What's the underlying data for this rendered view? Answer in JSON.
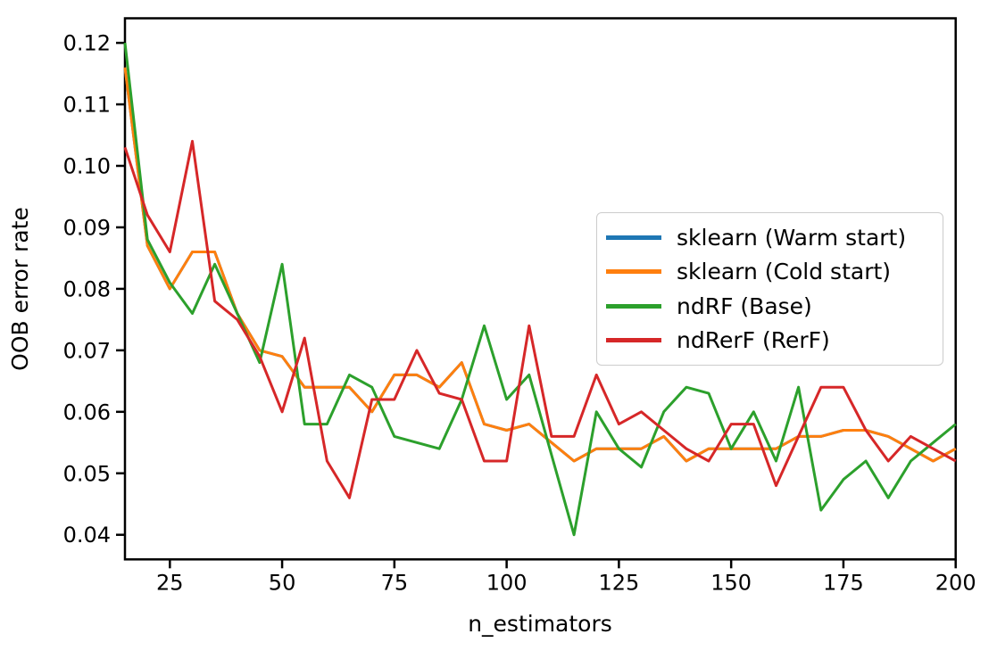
{
  "chart_data": {
    "type": "line",
    "title": "",
    "xlabel": "n_estimators",
    "ylabel": "OOB error rate",
    "xlim": [
      15,
      200
    ],
    "ylim": [
      0.036,
      0.124
    ],
    "x_ticks": [
      25,
      50,
      75,
      100,
      125,
      150,
      175,
      200
    ],
    "y_ticks": [
      0.04,
      0.05,
      0.06,
      0.07,
      0.08,
      0.09,
      0.1,
      0.11,
      0.12
    ],
    "grid": false,
    "legend_position": "center right",
    "x": [
      15,
      20,
      25,
      30,
      35,
      40,
      45,
      50,
      55,
      60,
      65,
      70,
      75,
      80,
      85,
      90,
      95,
      100,
      105,
      110,
      115,
      120,
      125,
      130,
      135,
      140,
      145,
      150,
      155,
      160,
      165,
      170,
      175,
      180,
      185,
      190,
      195,
      200
    ],
    "series": [
      {
        "name": "sklearn (Warm start)",
        "color": "#1f77b4",
        "values": [
          0.116,
          0.087,
          0.08,
          0.086,
          0.086,
          0.076,
          0.07,
          0.069,
          0.064,
          0.064,
          0.064,
          0.06,
          0.066,
          0.066,
          0.064,
          0.068,
          0.058,
          0.057,
          0.058,
          0.055,
          0.052,
          0.054,
          0.054,
          0.054,
          0.056,
          0.052,
          0.054,
          0.054,
          0.054,
          0.054,
          0.056,
          0.056,
          0.057,
          0.057,
          0.056,
          0.054,
          0.052,
          0.054
        ]
      },
      {
        "name": "sklearn (Cold start)",
        "color": "#ff7f0e",
        "values": [
          0.116,
          0.087,
          0.08,
          0.086,
          0.086,
          0.076,
          0.07,
          0.069,
          0.064,
          0.064,
          0.064,
          0.06,
          0.066,
          0.066,
          0.064,
          0.068,
          0.058,
          0.057,
          0.058,
          0.055,
          0.052,
          0.054,
          0.054,
          0.054,
          0.056,
          0.052,
          0.054,
          0.054,
          0.054,
          0.054,
          0.056,
          0.056,
          0.057,
          0.057,
          0.056,
          0.054,
          0.052,
          0.054
        ]
      },
      {
        "name": "ndRF (Base)",
        "color": "#2ca02c",
        "values": [
          0.12,
          0.088,
          0.081,
          0.076,
          0.084,
          0.076,
          0.068,
          0.084,
          0.058,
          0.058,
          0.066,
          0.064,
          0.056,
          0.055,
          0.054,
          0.062,
          0.074,
          0.062,
          0.066,
          0.053,
          0.04,
          0.06,
          0.054,
          0.051,
          0.06,
          0.064,
          0.063,
          0.054,
          0.06,
          0.052,
          0.064,
          0.044,
          0.049,
          0.052,
          0.046,
          0.052,
          0.055,
          0.058
        ]
      },
      {
        "name": "ndRerF (RerF)",
        "color": "#d62728",
        "values": [
          0.103,
          0.092,
          0.086,
          0.104,
          0.078,
          0.075,
          0.069,
          0.06,
          0.072,
          0.052,
          0.046,
          0.062,
          0.062,
          0.07,
          0.063,
          0.062,
          0.052,
          0.052,
          0.074,
          0.056,
          0.056,
          0.066,
          0.058,
          0.06,
          0.057,
          0.054,
          0.052,
          0.058,
          0.058,
          0.048,
          0.056,
          0.064,
          0.064,
          0.057,
          0.052,
          0.056,
          0.054,
          0.052
        ]
      }
    ],
    "style": {
      "spine_color": "#000000",
      "tick_label_size": 24,
      "axis_label_size": 25,
      "line_width": 3,
      "legend_border_color": "#cccccc"
    }
  }
}
